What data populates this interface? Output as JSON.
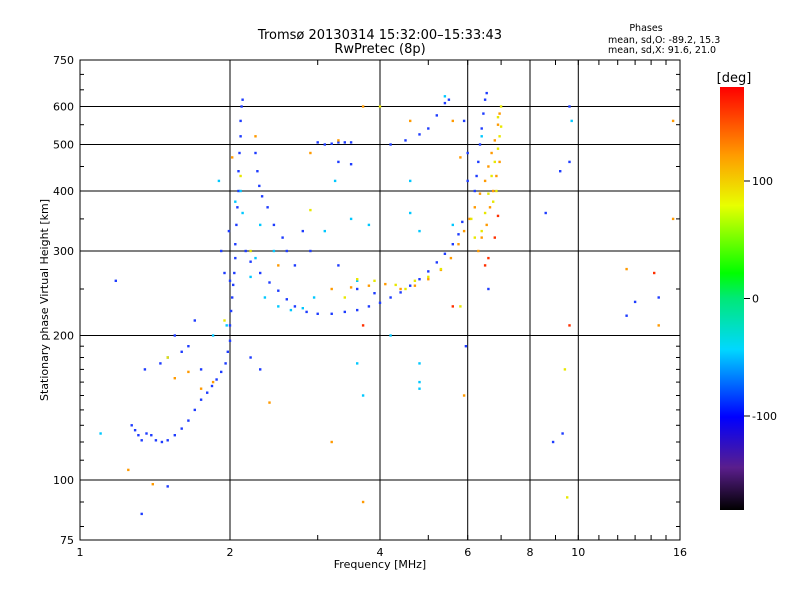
{
  "header": {
    "title_line1": "Tromsø 20130314 15:32:00–15:33:43",
    "title_line2": "RwPretec (8p)"
  },
  "phase_info": {
    "label": "Phases",
    "line_o": "mean, sd,O: -89.2, 15.3",
    "line_x": "mean, sd,X:  91.6, 21.0"
  },
  "colors": {
    "grid": "#000000",
    "low_o": "#1e3cff",
    "mid": "#00c8ff",
    "high_x": "#ff9a00",
    "yellow": "#e8e800"
  },
  "chart_data": {
    "type": "scatter",
    "xlabel": "Frequency [MHz]",
    "ylabel": "Stationary phase Virtual Height [km]",
    "xscale": "log",
    "yscale": "log",
    "xlim": [
      1,
      16
    ],
    "ylim": [
      75,
      750
    ],
    "x_ticks": [
      1,
      2,
      4,
      6,
      8,
      10,
      16
    ],
    "x_tick_labels": [
      "1",
      "2",
      "4",
      "6",
      "8",
      "10",
      "16"
    ],
    "y_ticks": [
      75,
      100,
      200,
      300,
      400,
      500,
      600,
      750
    ],
    "y_tick_labels": [
      "75",
      "100",
      "200",
      "300",
      "400",
      "500",
      "600",
      "750"
    ],
    "x_gridlines": [
      2,
      4,
      6,
      8,
      10
    ],
    "y_gridlines": [
      100,
      200,
      300,
      400,
      500,
      600
    ],
    "colorbar": {
      "title": "[deg]",
      "range": [
        -180,
        180
      ],
      "ticks": [
        100,
        0,
        -100
      ],
      "tick_labels": [
        "100",
        "0",
        "-100"
      ]
    },
    "series": [
      {
        "key": "ordinary_trace",
        "points": [
          [
            1.27,
            130
          ],
          [
            1.29,
            127
          ],
          [
            1.31,
            124
          ],
          [
            1.33,
            121
          ],
          [
            1.36,
            125
          ],
          [
            1.39,
            124
          ],
          [
            1.42,
            121
          ],
          [
            1.46,
            120
          ],
          [
            1.5,
            121
          ],
          [
            1.55,
            124
          ],
          [
            1.6,
            128
          ],
          [
            1.65,
            133
          ],
          [
            1.7,
            140
          ],
          [
            1.75,
            147
          ],
          [
            1.8,
            152
          ],
          [
            1.84,
            157
          ],
          [
            1.88,
            162
          ],
          [
            1.92,
            168
          ],
          [
            1.96,
            175
          ],
          [
            1.98,
            185
          ],
          [
            2.0,
            195
          ],
          [
            2.0,
            210
          ],
          [
            2.01,
            225
          ],
          [
            2.02,
            240
          ],
          [
            2.03,
            255
          ],
          [
            2.04,
            270
          ],
          [
            2.05,
            290
          ],
          [
            2.05,
            310
          ],
          [
            2.06,
            340
          ],
          [
            2.07,
            370
          ],
          [
            2.08,
            400
          ],
          [
            2.08,
            440
          ],
          [
            2.09,
            480
          ],
          [
            2.1,
            520
          ],
          [
            2.1,
            560
          ],
          [
            2.11,
            600
          ],
          [
            2.12,
            620
          ],
          [
            2.15,
            300
          ],
          [
            2.2,
            285
          ],
          [
            2.3,
            270
          ],
          [
            2.4,
            258
          ],
          [
            2.5,
            248
          ],
          [
            2.6,
            238
          ],
          [
            2.7,
            230
          ],
          [
            2.85,
            224
          ],
          [
            3.0,
            222
          ],
          [
            3.2,
            222
          ],
          [
            3.4,
            224
          ],
          [
            3.6,
            226
          ],
          [
            3.8,
            230
          ],
          [
            4.0,
            234
          ],
          [
            4.2,
            240
          ],
          [
            4.4,
            246
          ],
          [
            4.6,
            254
          ],
          [
            4.8,
            262
          ],
          [
            5.0,
            272
          ],
          [
            5.2,
            284
          ],
          [
            5.4,
            296
          ],
          [
            5.6,
            310
          ],
          [
            5.75,
            325
          ],
          [
            5.85,
            345
          ],
          [
            6.2,
            400
          ],
          [
            6.25,
            430
          ],
          [
            6.3,
            460
          ],
          [
            6.35,
            500
          ],
          [
            6.4,
            540
          ],
          [
            6.45,
            580
          ],
          [
            6.5,
            620
          ],
          [
            6.55,
            640
          ],
          [
            2.25,
            480
          ],
          [
            2.27,
            440
          ],
          [
            2.29,
            410
          ],
          [
            2.32,
            390
          ],
          [
            2.38,
            370
          ],
          [
            2.45,
            340
          ],
          [
            2.55,
            320
          ],
          [
            3.0,
            505
          ],
          [
            3.1,
            500
          ],
          [
            3.2,
            502
          ],
          [
            3.3,
            505
          ],
          [
            3.4,
            505
          ],
          [
            3.5,
            505
          ],
          [
            4.2,
            500
          ],
          [
            4.5,
            510
          ],
          [
            4.8,
            525
          ],
          [
            5.0,
            540
          ],
          [
            5.2,
            575
          ],
          [
            5.4,
            610
          ],
          [
            5.5,
            620
          ],
          [
            1.18,
            260
          ],
          [
            1.35,
            170
          ],
          [
            1.45,
            175
          ],
          [
            1.5,
            180
          ],
          [
            1.6,
            185
          ],
          [
            1.75,
            170
          ],
          [
            2.2,
            180
          ],
          [
            2.3,
            170
          ],
          [
            2.6,
            300
          ],
          [
            2.7,
            280
          ],
          [
            2.8,
            330
          ],
          [
            2.9,
            300
          ],
          [
            3.3,
            280
          ],
          [
            3.6,
            250
          ],
          [
            3.9,
            245
          ],
          [
            3.3,
            460
          ],
          [
            3.5,
            455
          ],
          [
            1.55,
            200
          ],
          [
            1.65,
            190
          ],
          [
            1.7,
            215
          ],
          [
            2.0,
            260
          ],
          [
            1.95,
            270
          ],
          [
            1.92,
            300
          ],
          [
            1.99,
            330
          ],
          [
            5.9,
            560
          ],
          [
            6.0,
            480
          ],
          [
            6.0,
            420
          ],
          [
            9.2,
            440
          ],
          [
            9.6,
            460
          ],
          [
            9.6,
            600
          ],
          [
            9.3,
            125
          ],
          [
            8.9,
            120
          ],
          [
            5.95,
            190
          ],
          [
            6.6,
            250
          ],
          [
            12.5,
            220
          ],
          [
            13.0,
            235
          ],
          [
            14.5,
            240
          ],
          [
            1.33,
            85
          ],
          [
            1.5,
            97
          ],
          [
            8.6,
            360
          ]
        ]
      },
      {
        "key": "cyan_points",
        "points": [
          [
            2.2,
            265
          ],
          [
            2.35,
            240
          ],
          [
            2.5,
            230
          ],
          [
            2.65,
            226
          ],
          [
            2.8,
            228
          ],
          [
            3.6,
            260
          ],
          [
            2.3,
            340
          ],
          [
            2.45,
            300
          ],
          [
            2.12,
            360
          ],
          [
            2.05,
            380
          ],
          [
            1.97,
            210
          ],
          [
            1.85,
            200
          ],
          [
            4.8,
            330
          ],
          [
            4.6,
            360
          ],
          [
            4.6,
            420
          ],
          [
            5.6,
            340
          ],
          [
            4.8,
            175
          ],
          [
            4.8,
            160
          ],
          [
            4.8,
            155
          ],
          [
            3.5,
            350
          ],
          [
            3.25,
            420
          ],
          [
            3.1,
            330
          ],
          [
            5.4,
            630
          ],
          [
            6.4,
            520
          ],
          [
            3.7,
            150
          ],
          [
            2.1,
            400
          ],
          [
            9.7,
            560
          ],
          [
            4.2,
            200
          ],
          [
            1.9,
            420
          ],
          [
            2.25,
            290
          ],
          [
            3.8,
            340
          ],
          [
            1.1,
            125
          ],
          [
            2.95,
            240
          ],
          [
            3.6,
            175
          ]
        ]
      },
      {
        "key": "extraordinary_trace",
        "points": [
          [
            3.2,
            250
          ],
          [
            3.5,
            252
          ],
          [
            3.8,
            254
          ],
          [
            4.1,
            256
          ],
          [
            4.4,
            250
          ],
          [
            4.7,
            254
          ],
          [
            5.0,
            262
          ],
          [
            5.3,
            274
          ],
          [
            5.55,
            290
          ],
          [
            5.75,
            310
          ],
          [
            5.9,
            330
          ],
          [
            6.05,
            350
          ],
          [
            6.2,
            370
          ],
          [
            6.35,
            395
          ],
          [
            6.5,
            420
          ],
          [
            6.6,
            450
          ],
          [
            6.7,
            480
          ],
          [
            6.8,
            510
          ],
          [
            6.9,
            550
          ],
          [
            6.95,
            580
          ],
          [
            6.3,
            300
          ],
          [
            6.4,
            320
          ],
          [
            6.55,
            340
          ],
          [
            6.65,
            370
          ],
          [
            6.75,
            400
          ],
          [
            6.85,
            430
          ],
          [
            6.95,
            460
          ],
          [
            1.55,
            163
          ],
          [
            1.65,
            168
          ],
          [
            1.75,
            155
          ],
          [
            1.85,
            160
          ],
          [
            2.02,
            470
          ],
          [
            2.25,
            520
          ],
          [
            2.5,
            280
          ],
          [
            2.9,
            480
          ],
          [
            3.3,
            510
          ],
          [
            3.7,
            600
          ],
          [
            4.6,
            560
          ],
          [
            5.9,
            150
          ],
          [
            3.7,
            90
          ],
          [
            3.2,
            120
          ],
          [
            2.4,
            145
          ],
          [
            1.25,
            105
          ],
          [
            1.4,
            98
          ],
          [
            12.5,
            275
          ],
          [
            15.5,
            350
          ],
          [
            15.5,
            560
          ],
          [
            14.5,
            210
          ],
          [
            5.6,
            560
          ],
          [
            5.8,
            470
          ]
        ]
      },
      {
        "key": "yellow_points",
        "points": [
          [
            6.7,
            430
          ],
          [
            6.8,
            460
          ],
          [
            6.9,
            490
          ],
          [
            6.95,
            520
          ],
          [
            7.0,
            545
          ],
          [
            6.85,
            400
          ],
          [
            6.75,
            380
          ],
          [
            6.6,
            395
          ],
          [
            6.5,
            360
          ],
          [
            6.4,
            330
          ],
          [
            7.0,
            600
          ],
          [
            6.9,
            570
          ],
          [
            6.1,
            350
          ],
          [
            6.2,
            320
          ],
          [
            4.3,
            255
          ],
          [
            4.5,
            250
          ],
          [
            4.7,
            260
          ],
          [
            5.0,
            265
          ],
          [
            5.3,
            275
          ],
          [
            3.9,
            260
          ],
          [
            3.6,
            262
          ],
          [
            2.2,
            300
          ],
          [
            1.95,
            215
          ],
          [
            1.5,
            180
          ],
          [
            9.4,
            170
          ],
          [
            9.5,
            92
          ],
          [
            5.8,
            230
          ],
          [
            4.0,
            600
          ],
          [
            2.1,
            430
          ],
          [
            2.9,
            365
          ],
          [
            3.4,
            240
          ]
        ]
      },
      {
        "key": "red_points",
        "points": [
          [
            6.5,
            280
          ],
          [
            6.6,
            290
          ],
          [
            6.8,
            320
          ],
          [
            6.9,
            355
          ],
          [
            9.6,
            210
          ],
          [
            3.7,
            210
          ],
          [
            14.2,
            270
          ],
          [
            5.6,
            230
          ]
        ]
      }
    ]
  }
}
